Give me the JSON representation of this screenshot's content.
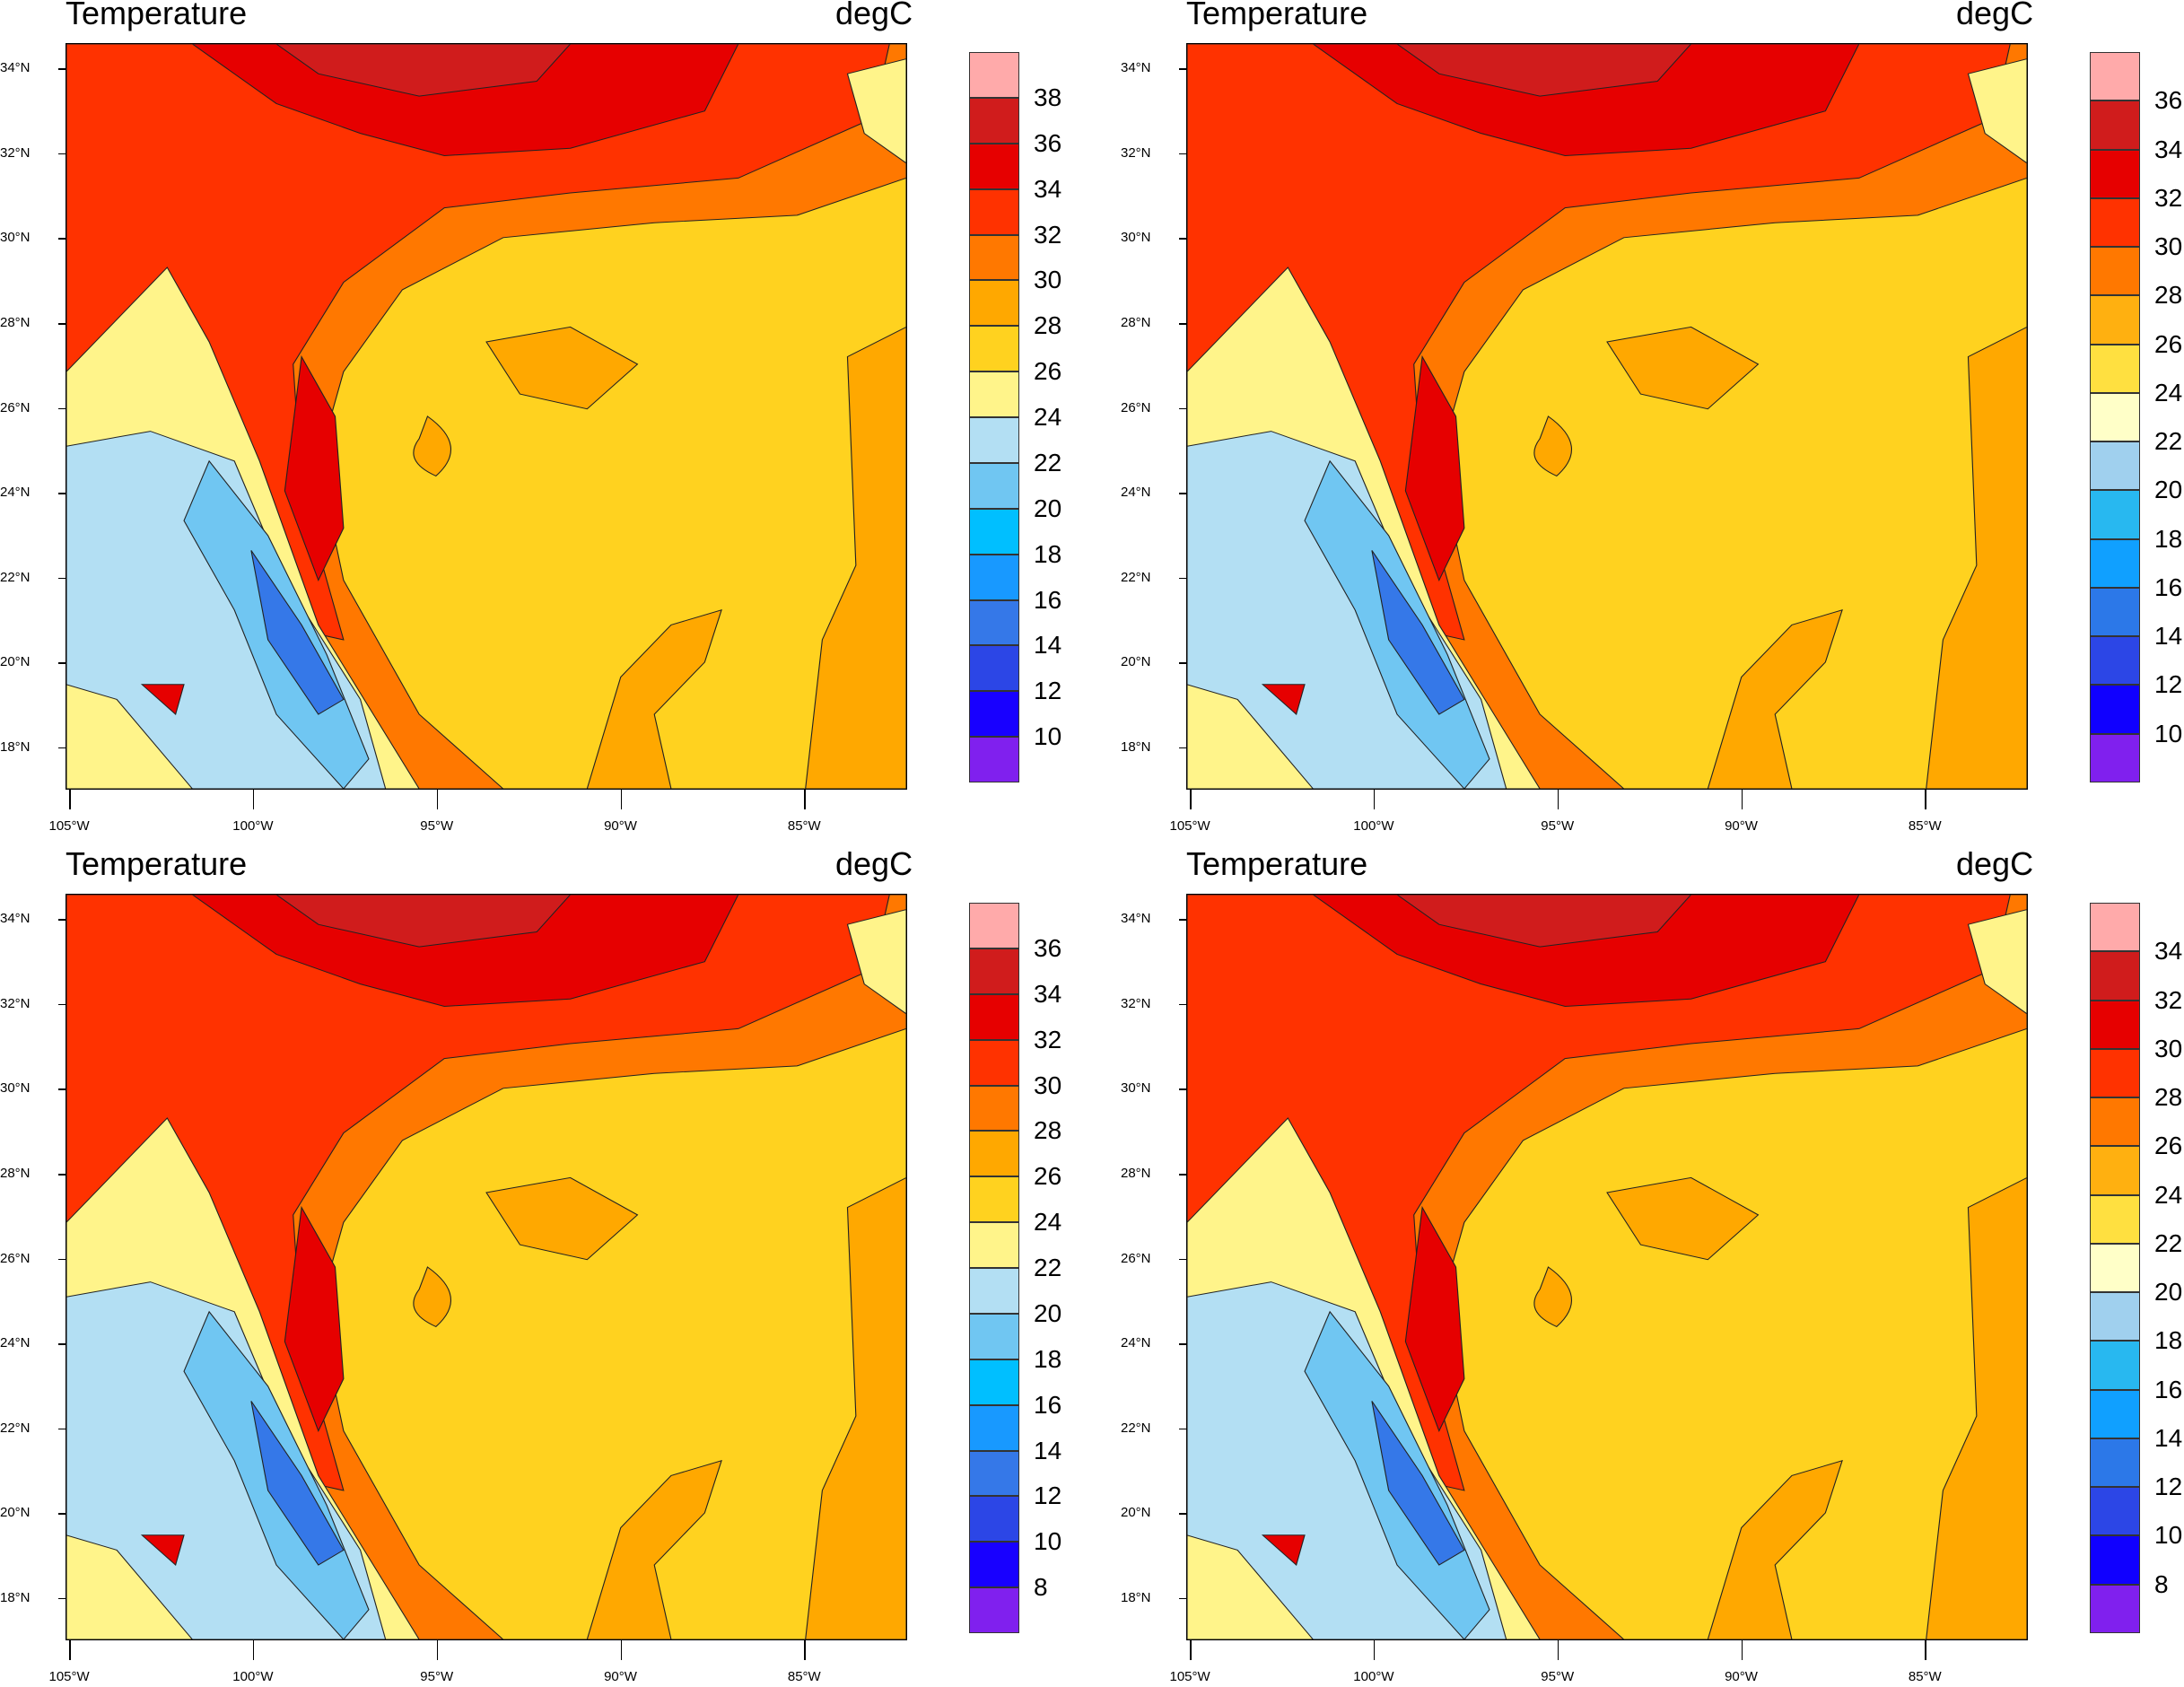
{
  "chart_data": [
    {
      "type": "filled-contour-map",
      "title": "Temperature",
      "units": "degC",
      "colorbar_labels": [
        "38",
        "36",
        "34",
        "32",
        "30",
        "28",
        "26",
        "24",
        "22",
        "20",
        "18",
        "16",
        "14",
        "12",
        "10"
      ],
      "colors": [
        "#ffaaaa",
        "#d01c1c",
        "#e60000",
        "#ff3200",
        "#ff7800",
        "#ffa800",
        "#ffd21f",
        "#fff48a",
        "#b3dff3",
        "#70c6f2",
        "#00bfff",
        "#1899ff",
        "#3578e8",
        "#2c46e6",
        "#1800ff",
        "#8020ee"
      ]
    },
    {
      "type": "filled-contour-map",
      "title": "Temperature",
      "units": "degC",
      "colorbar_labels": [
        "36",
        "34",
        "32",
        "30",
        "28",
        "26",
        "24",
        "22",
        "20",
        "18",
        "16",
        "14",
        "12",
        "10"
      ],
      "colors": [
        "#ffaaaa",
        "#d01c1c",
        "#e60000",
        "#ff3200",
        "#ff7800",
        "#ffb010",
        "#ffe040",
        "#ffffc8",
        "#a0d0ee",
        "#28b8f0",
        "#10a0ff",
        "#2c78e8",
        "#2c46e6",
        "#1000ff",
        "#8020ee"
      ]
    },
    {
      "type": "filled-contour-map",
      "title": "Temperature",
      "units": "degC",
      "colorbar_labels": [
        "36",
        "34",
        "32",
        "30",
        "28",
        "26",
        "24",
        "22",
        "20",
        "18",
        "16",
        "14",
        "12",
        "10",
        "8"
      ],
      "colors": [
        "#ffaaaa",
        "#d01c1c",
        "#e60000",
        "#ff3200",
        "#ff7800",
        "#ffa800",
        "#ffd21f",
        "#fff48a",
        "#b3dff3",
        "#70c6f2",
        "#00bfff",
        "#1899ff",
        "#3578e8",
        "#2c46e6",
        "#1800ff",
        "#8020ee"
      ]
    },
    {
      "type": "filled-contour-map",
      "title": "Temperature",
      "units": "degC",
      "colorbar_labels": [
        "34",
        "32",
        "30",
        "28",
        "26",
        "24",
        "22",
        "20",
        "18",
        "16",
        "14",
        "12",
        "10",
        "8"
      ],
      "colors": [
        "#ffaaaa",
        "#d01c1c",
        "#e60000",
        "#ff3200",
        "#ff7800",
        "#ffb010",
        "#ffe040",
        "#ffffc8",
        "#a0d0ee",
        "#28b8f0",
        "#10a0ff",
        "#2c78e8",
        "#2c46e6",
        "#1000ff",
        "#8020ee"
      ]
    }
  ],
  "lat_ticks": [
    {
      "v": 34,
      "label": "34°N"
    },
    {
      "v": 32,
      "label": "32°N"
    },
    {
      "v": 30,
      "label": "30°N"
    },
    {
      "v": 28,
      "label": "28°N"
    },
    {
      "v": 26,
      "label": "26°N"
    },
    {
      "v": 24,
      "label": "24°N"
    },
    {
      "v": 22,
      "label": "22°N"
    },
    {
      "v": 20,
      "label": "20°N"
    },
    {
      "v": 18,
      "label": "18°N"
    }
  ],
  "lon_ticks": [
    {
      "v": -105,
      "label": "105°W"
    },
    {
      "v": -100,
      "label": "100°W"
    },
    {
      "v": -95,
      "label": "95°W"
    },
    {
      "v": -90,
      "label": "90°W"
    },
    {
      "v": -85,
      "label": "85°W"
    }
  ],
  "lat_range": [
    17,
    34.6
  ],
  "lon_range": [
    -105.1,
    -82.2
  ]
}
